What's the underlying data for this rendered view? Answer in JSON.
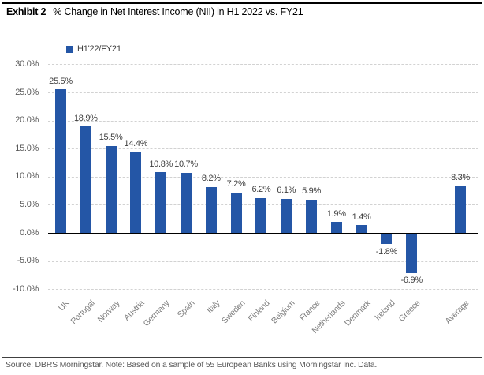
{
  "header": {
    "exhibit_label": "Exhibit 2",
    "title": "% Change in Net Interest Income (NII) in H1 2022 vs. FY21"
  },
  "legend": {
    "series_label": "H1'22/FY21"
  },
  "chart_data": {
    "type": "bar",
    "title": "% Change in Net Interest Income (NII) in H1 2022 vs. FY21",
    "categories": [
      "UK",
      "Portugal",
      "Norway",
      "Austria",
      "Germany",
      "Spain",
      "Italy",
      "Sweden",
      "Finland",
      "Belgium",
      "France",
      "Netherlands",
      "Denmark",
      "Ireland",
      "Greece",
      "Average"
    ],
    "values": [
      25.5,
      18.9,
      15.5,
      14.4,
      10.8,
      10.7,
      8.2,
      7.2,
      6.2,
      6.1,
      5.9,
      1.9,
      1.4,
      -1.8,
      -6.9,
      8.3
    ],
    "data_labels": [
      "25.5%",
      "18.9%",
      "15.5%",
      "14.4%",
      "10.8%",
      "10.7%",
      "8.2%",
      "7.2%",
      "6.2%",
      "6.1%",
      "5.9%",
      "1.9%",
      "1.4%",
      "-1.8%",
      "-6.9%",
      "8.3%"
    ],
    "series": [
      {
        "name": "H1'22/FY21",
        "values": [
          25.5,
          18.9,
          15.5,
          14.4,
          10.8,
          10.7,
          8.2,
          7.2,
          6.2,
          6.1,
          5.9,
          1.9,
          1.4,
          -1.8,
          -6.9,
          8.3
        ]
      }
    ],
    "xlabel": "",
    "ylabel": "",
    "ylim": [
      -10,
      30
    ],
    "ytick_step": 5,
    "ytick_labels": [
      "30.0%",
      "25.0%",
      "20.0%",
      "15.0%",
      "10.0%",
      "5.0%",
      "0.0%",
      "-5.0%",
      "-10.0%"
    ],
    "grid": "horizontal-dashed",
    "legend_entries": [
      "H1'22/FY21"
    ],
    "legend_position": "top-left",
    "last_category_separated": true,
    "bar_color": "#2456A6",
    "axis_label_color": "#595959",
    "data_label_color": "#404040",
    "category_label_color": "#7F7F7F"
  },
  "footer": {
    "source_note": "Source: DBRS Morningstar. Note: Based on a sample of 55 European Banks using Morningstar Inc. Data."
  }
}
